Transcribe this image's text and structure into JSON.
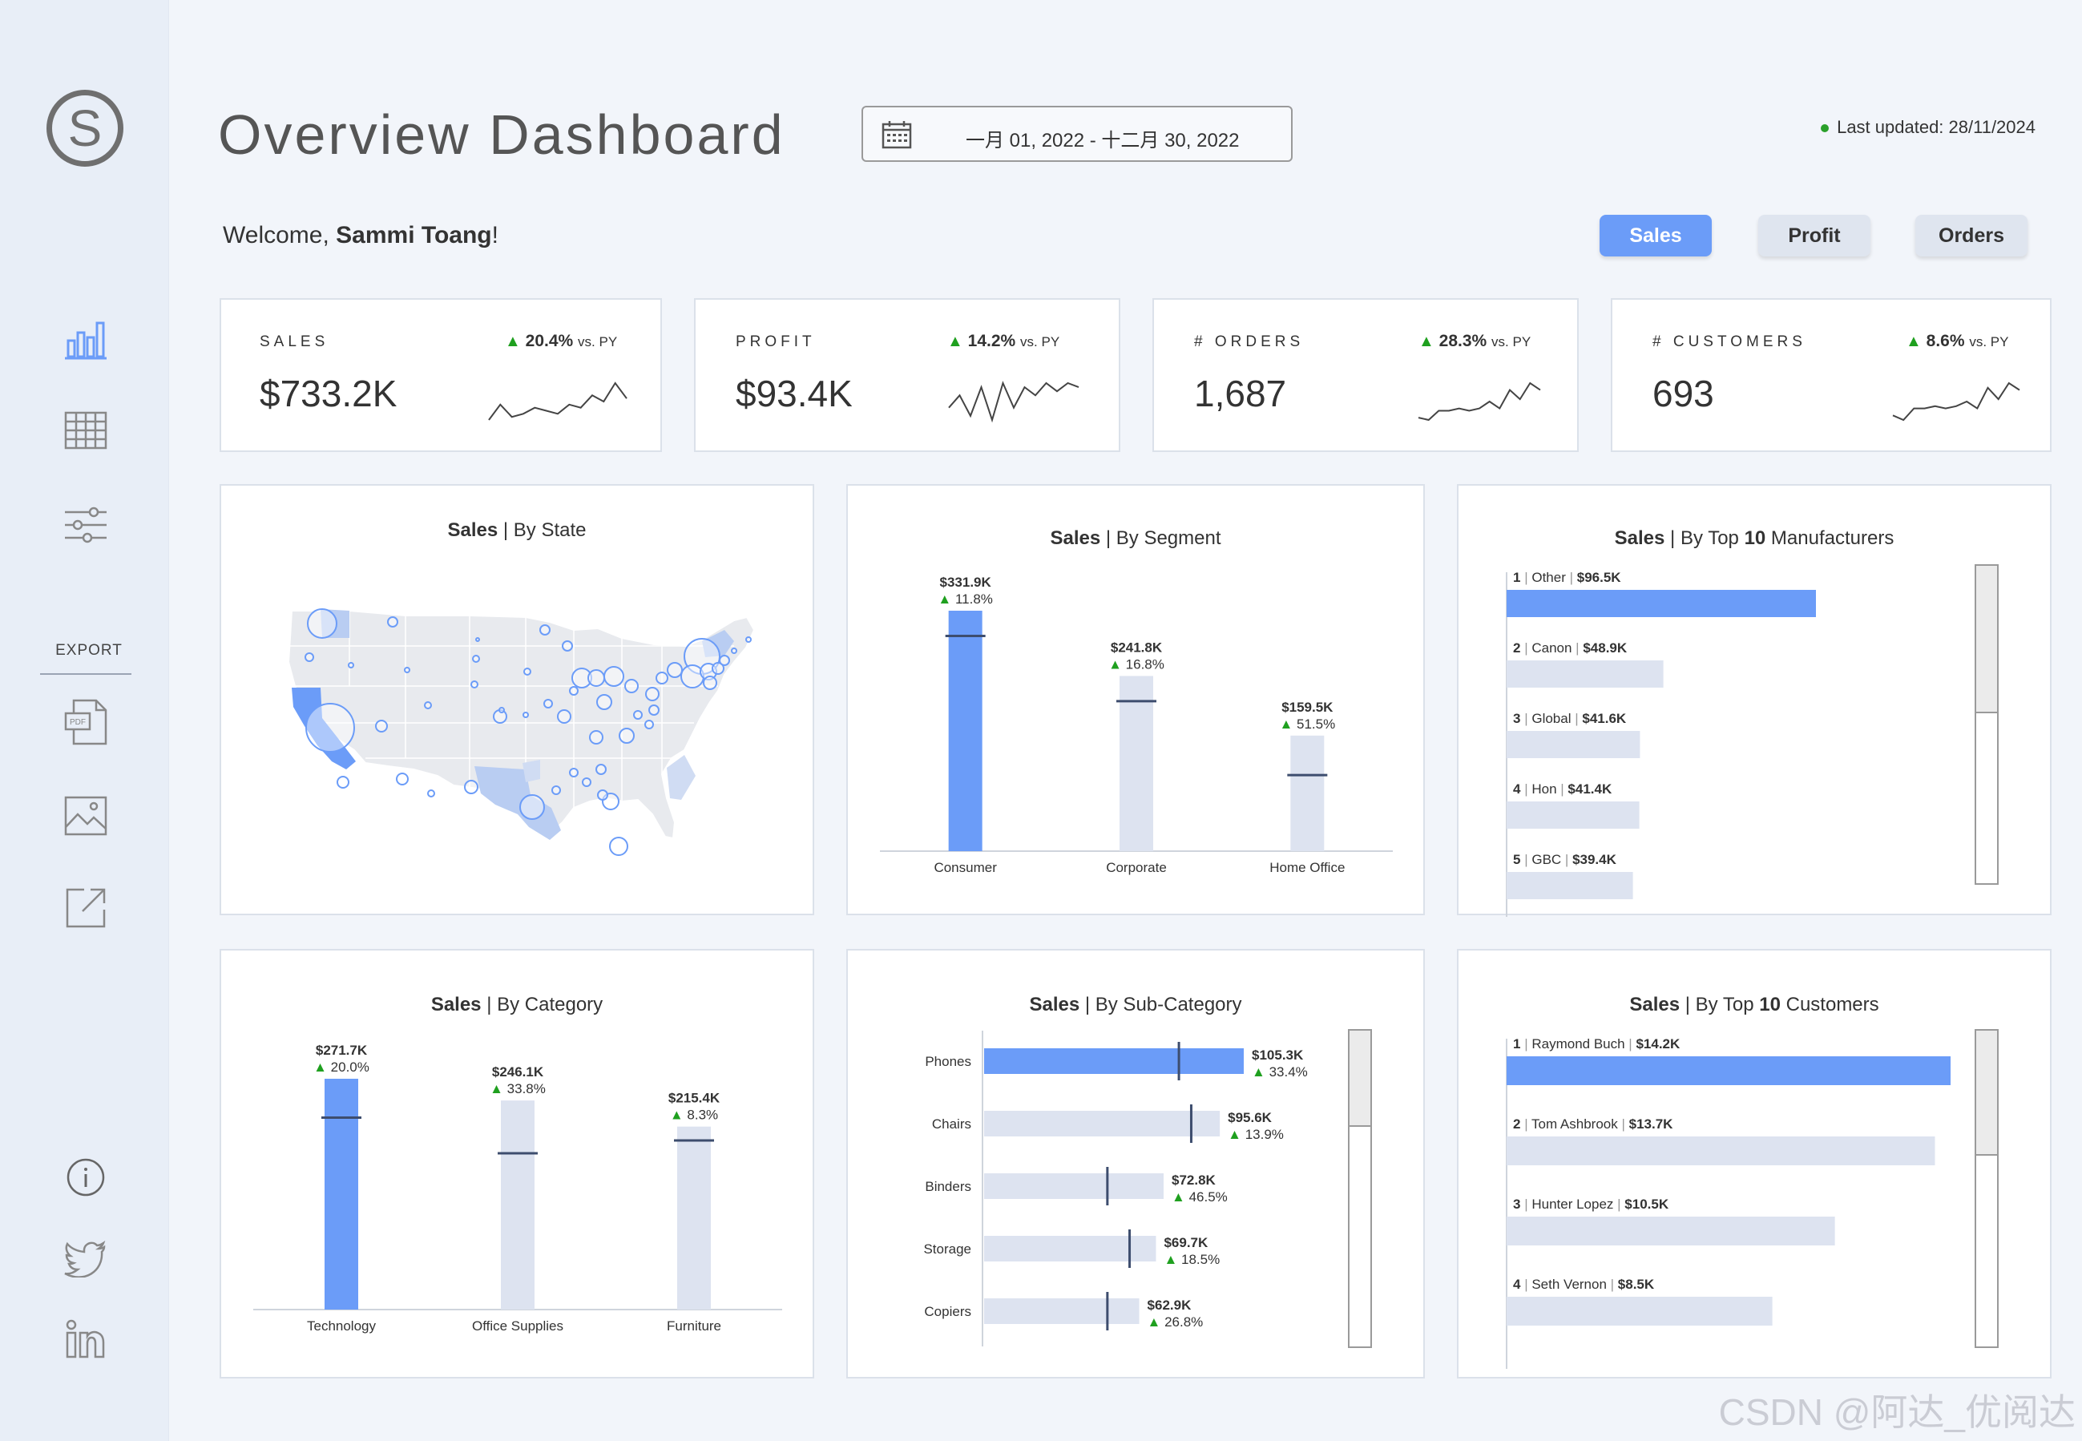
{
  "header": {
    "title": "Overview Dashboard",
    "date_range": "一月 01, 2022 - 十二月 30, 2022",
    "last_updated": "Last updated: 28/11/2024",
    "welcome_prefix": "Welcome, ",
    "welcome_name": "Sammi Toang",
    "welcome_suffix": "!"
  },
  "sidebar": {
    "logo_letter": "S",
    "export_label": "EXPORT",
    "icons": [
      "bar-chart-icon",
      "table-icon",
      "filters-icon",
      "pdf-icon",
      "image-icon",
      "share-icon",
      "info-icon",
      "twitter-icon",
      "linkedin-icon"
    ]
  },
  "measure_buttons": [
    "Sales",
    "Profit",
    "Orders"
  ],
  "active_measure": "Sales",
  "kpis": [
    {
      "label": "SALES",
      "value": "$733.2K",
      "delta": "20.4%",
      "vs": "vs. PY",
      "spark": [
        3,
        8,
        4,
        5,
        7,
        6,
        5,
        8,
        7,
        11,
        9,
        15,
        10
      ]
    },
    {
      "label": "PROFIT",
      "value": "$93.4K",
      "delta": "14.2%",
      "vs": "vs. PY",
      "spark": [
        4,
        7,
        2,
        9,
        1,
        10,
        4,
        9,
        7,
        10,
        8,
        10,
        9
      ]
    },
    {
      "label": "# ORDERS",
      "value": "1,687",
      "delta": "28.3%",
      "vs": "vs. PY",
      "spark": [
        2,
        1,
        5,
        5,
        6,
        5,
        6,
        9,
        6,
        14,
        10,
        17,
        14
      ]
    },
    {
      "label": "# CUSTOMERS",
      "value": "693",
      "delta": "8.6%",
      "vs": "vs. PY",
      "spark": [
        4,
        2,
        7,
        7,
        8,
        7,
        8,
        10,
        7,
        16,
        11,
        18,
        15
      ]
    }
  ],
  "panels": {
    "state": {
      "title_bold": "Sales",
      "title_rest": " | By State"
    },
    "segment": {
      "title_bold": "Sales",
      "title_rest": " | By Segment"
    },
    "manufacturers": {
      "title_bold": "Sales",
      "title_rest": " | By Top ",
      "title_n": "10",
      "title_end": " Manufacturers"
    },
    "category": {
      "title_bold": "Sales",
      "title_rest": " | By Category"
    },
    "subcategory": {
      "title_bold": "Sales",
      "title_rest": " | By Sub-Category"
    },
    "customers": {
      "title_bold": "Sales",
      "title_rest": " | By Top ",
      "title_n": "10",
      "title_end": " Customers"
    }
  },
  "chart_data": [
    {
      "type": "bar",
      "id": "segment",
      "categories": [
        "Consumer",
        "Corporate",
        "Home Office"
      ],
      "values": [
        331.9,
        241.8,
        159.5
      ],
      "value_labels": [
        "$331.9K",
        "$241.8K",
        "$159.5K"
      ],
      "growth": [
        "11.8%",
        "16.8%",
        "51.5%"
      ],
      "prior_year": [
        297,
        207,
        105
      ],
      "ylim": [
        0,
        331.9
      ],
      "highlight": "Consumer"
    },
    {
      "type": "bar",
      "id": "manufacturers",
      "orientation": "horizontal",
      "categories": [
        "Other",
        "Canon",
        "Global",
        "Hon",
        "GBC"
      ],
      "values": [
        96.5,
        48.9,
        41.6,
        41.4,
        39.4
      ],
      "value_labels": [
        "$96.5K",
        "$48.9K",
        "$41.6K",
        "$41.4K",
        "$39.4K"
      ],
      "ranks": [
        "1",
        "2",
        "3",
        "4",
        "5"
      ],
      "highlight": "Other"
    },
    {
      "type": "bar",
      "id": "category",
      "categories": [
        "Technology",
        "Office Supplies",
        "Furniture"
      ],
      "values": [
        271.7,
        246.1,
        215.4
      ],
      "value_labels": [
        "$271.7K",
        "$246.1K",
        "$215.4K"
      ],
      "growth": [
        "20.0%",
        "33.8%",
        "8.3%"
      ],
      "prior_year": [
        226,
        184,
        199
      ],
      "ylim": [
        0,
        271.7
      ],
      "highlight": "Technology"
    },
    {
      "type": "bar",
      "id": "subcategory",
      "orientation": "horizontal",
      "categories": [
        "Phones",
        "Chairs",
        "Binders",
        "Storage",
        "Copiers"
      ],
      "values": [
        105.3,
        95.6,
        72.8,
        69.7,
        62.9
      ],
      "value_labels": [
        "$105.3K",
        "$95.6K",
        "$72.8K",
        "$69.7K",
        "$62.9K"
      ],
      "growth": [
        "33.4%",
        "13.9%",
        "46.5%",
        "18.5%",
        "26.8%"
      ],
      "prior_year": [
        79,
        84,
        50,
        59,
        50
      ],
      "highlight": "Phones"
    },
    {
      "type": "bar",
      "id": "customers",
      "orientation": "horizontal",
      "categories": [
        "Raymond Buch",
        "Tom Ashbrook",
        "Hunter Lopez",
        "Seth Vernon"
      ],
      "values": [
        14.2,
        13.7,
        10.5,
        8.5
      ],
      "value_labels": [
        "$14.2K",
        "$13.7K",
        "$10.5K",
        "$8.5K"
      ],
      "ranks": [
        "1",
        "2",
        "3",
        "4"
      ],
      "highlight": "Raymond Buch"
    }
  ],
  "colors": {
    "accent": "#6b9cf8",
    "muted_bar": "#dde3f0",
    "ref_line": "#3d4d6e",
    "positive": "#1fa01f"
  },
  "watermark": "CSDN @阿达_优阅达"
}
